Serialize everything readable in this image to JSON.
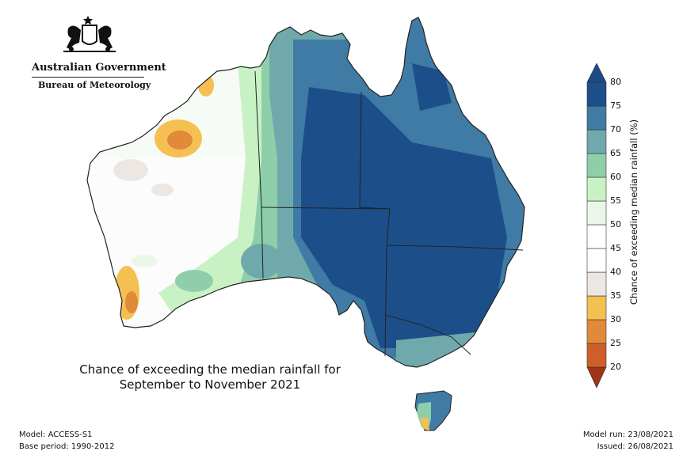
{
  "logo": {
    "government": "Australian Government",
    "bureau": "Bureau of Meteorology"
  },
  "map_title": {
    "line1": "Chance of exceeding the median rainfall for",
    "line2": "September to November 2021"
  },
  "footer": {
    "model": "Model: ACCESS-S1",
    "base_period": "Base period: 1990-2012",
    "model_run": "Model run: 23/08/2021",
    "issued": "Issued: 26/08/2021"
  },
  "colorbar": {
    "title": "Chance of exceeding median rainfall (%)",
    "ticks": [
      "20",
      "25",
      "30",
      "35",
      "40",
      "45",
      "50",
      "55",
      "60",
      "65",
      "70",
      "75",
      "80"
    ],
    "colors": [
      "#b5401f",
      "#cf5f28",
      "#e08a3a",
      "#f5c052",
      "#ece7e2",
      "#ffffff",
      "#ffffff",
      "#eaf6e8",
      "#c8f2c4",
      "#8ecfa9",
      "#6fa9ac",
      "#3f7ba5",
      "#1c4f8a"
    ],
    "over_color": "#1b4a86",
    "under_color": "#9e3417"
  },
  "regions": {
    "land_base": "#eef5ec",
    "outline": "#222222"
  }
}
